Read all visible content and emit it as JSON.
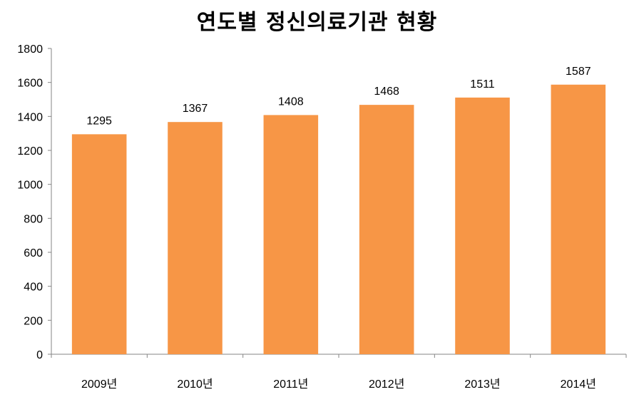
{
  "chart_data": {
    "type": "bar",
    "title": "연도별 정신의료기관 현황",
    "categories": [
      "2009년",
      "2010년",
      "2011년",
      "2012년",
      "2013년",
      "2014년"
    ],
    "values": [
      1295,
      1367,
      1408,
      1468,
      1511,
      1587
    ],
    "ylim": [
      0,
      1800
    ],
    "yticks": [
      0,
      200,
      400,
      600,
      800,
      1000,
      1200,
      1400,
      1600,
      1800
    ],
    "grid": false,
    "legend": "none",
    "bar_color": "#f79646",
    "axis_color": "#868686"
  }
}
